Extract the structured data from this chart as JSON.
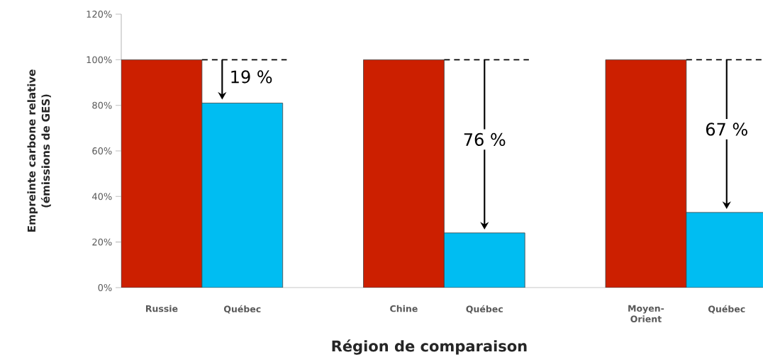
{
  "chart_data": {
    "type": "bar",
    "xlabel": "Région de comparaison",
    "ylabel": "Empreinte carbone relative (émissions de GES)",
    "categories": [
      "Russie",
      "Québec",
      null,
      "Chine",
      "Québec",
      null,
      "Moyen-Orient",
      "Québec"
    ],
    "values": [
      100,
      81,
      null,
      100,
      24,
      null,
      100,
      33
    ],
    "colors": [
      "#cc1f00",
      "#00bdf2",
      null,
      "#cc1f00",
      "#00bdf2",
      null,
      "#cc1f00",
      "#00bdf2"
    ],
    "ylim": [
      0,
      120
    ],
    "yticks": [
      {
        "value": 0,
        "label": "0%"
      },
      {
        "value": 20,
        "label": "20%"
      },
      {
        "value": 40,
        "label": "40%"
      },
      {
        "value": 60,
        "label": "60%"
      },
      {
        "value": 80,
        "label": "80%"
      },
      {
        "value": 100,
        "label": "100%"
      },
      {
        "value": 120,
        "label": "120%"
      }
    ],
    "annotations": [
      {
        "text": "19 %",
        "y": 81
      },
      "76 %",
      "67 %"
    ]
  }
}
